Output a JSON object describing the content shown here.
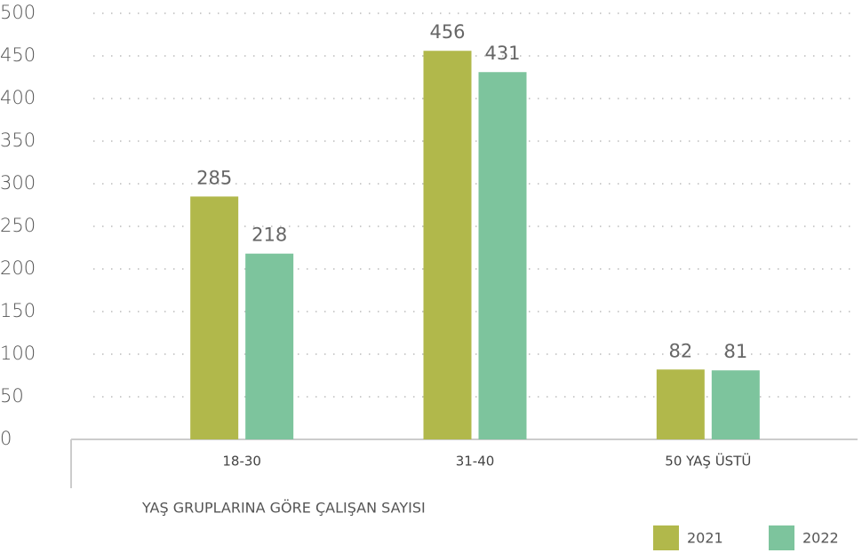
{
  "chart_data": {
    "type": "bar",
    "xlabel": "YAŞ GRUPLARINA GÖRE ÇALIŞAN SAYISI",
    "categories": [
      "18-30",
      "31-40",
      "50 YAŞ ÜSTÜ"
    ],
    "series": [
      {
        "name": "2021",
        "color": "#b1b84b",
        "values": [
          285,
          456,
          82
        ]
      },
      {
        "name": "2022",
        "color": "#7dc49d",
        "values": [
          218,
          431,
          81
        ]
      }
    ],
    "ylim": [
      0,
      500
    ],
    "yticks": [
      0,
      50,
      100,
      150,
      200,
      250,
      300,
      350,
      400,
      450,
      500
    ],
    "grid": true,
    "legend": "bottom-right"
  }
}
